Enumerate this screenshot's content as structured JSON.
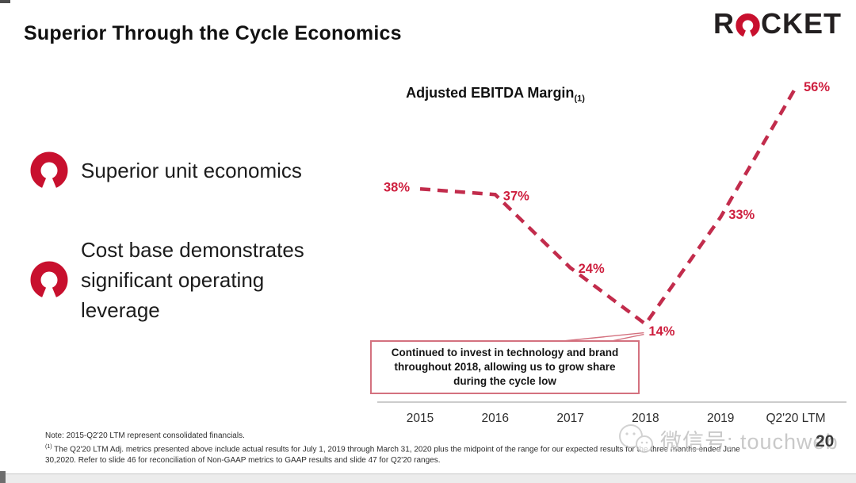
{
  "slide": {
    "title": "Superior Through the Cycle Economics",
    "page_number": "20"
  },
  "logo": {
    "name": "ROCKET",
    "prefix": "R",
    "suffix": "CKET",
    "brand_red": "#C8102E"
  },
  "bullets": [
    {
      "text": "Superior unit economics"
    },
    {
      "text": "Cost base demonstrates significant operating leverage"
    }
  ],
  "chart": {
    "title": "Adjusted EBITDA Margin",
    "title_ref": "(1)",
    "callout": "Continued to invest in technology and brand throughout 2018, allowing us to grow share during the cycle low"
  },
  "chart_data": {
    "type": "line",
    "title": "Adjusted EBITDA Margin (1)",
    "categories": [
      "2015",
      "2016",
      "2017",
      "2018",
      "2019",
      "Q2'20 LTM"
    ],
    "values": [
      38,
      37,
      24,
      14,
      33,
      56
    ],
    "point_labels": [
      "38%",
      "37%",
      "24%",
      "14%",
      "33%",
      "56%"
    ],
    "unit": "%",
    "ylim": [
      0,
      60
    ],
    "grid": false,
    "legend": false,
    "line_style": "dashed",
    "line_color": "#C22C4C",
    "label_color": "#CE1F3E",
    "annotation": "Continued to invest in technology and brand throughout 2018, allowing us to grow share during the cycle low",
    "annotation_target": "2018"
  },
  "footnotes": {
    "note": "Note: 2015-Q2'20 LTM represent consolidated financials.",
    "ref_mark": "(1)",
    "line1": "The Q2'20 LTM Adj. metrics presented above include actual results for July 1, 2019 through March 31, 2020 plus the midpoint of the range for our expected results for the three months ended June",
    "line2": "30,2020. Refer to slide 46 for reconciliation of Non-GAAP metrics to GAAP results and slide 47 for Q2'20 ranges."
  },
  "watermark": {
    "text": "微信号: touchweb"
  },
  "colors": {
    "brand_red": "#C8102E",
    "line_red": "#C22C4C",
    "label_red": "#CE1F3E",
    "callout_border": "#D4717F",
    "axis_gray": "#CCCCCC",
    "watermark_gray": "#B8B8B8",
    "text_dark": "#1A1A1A"
  }
}
